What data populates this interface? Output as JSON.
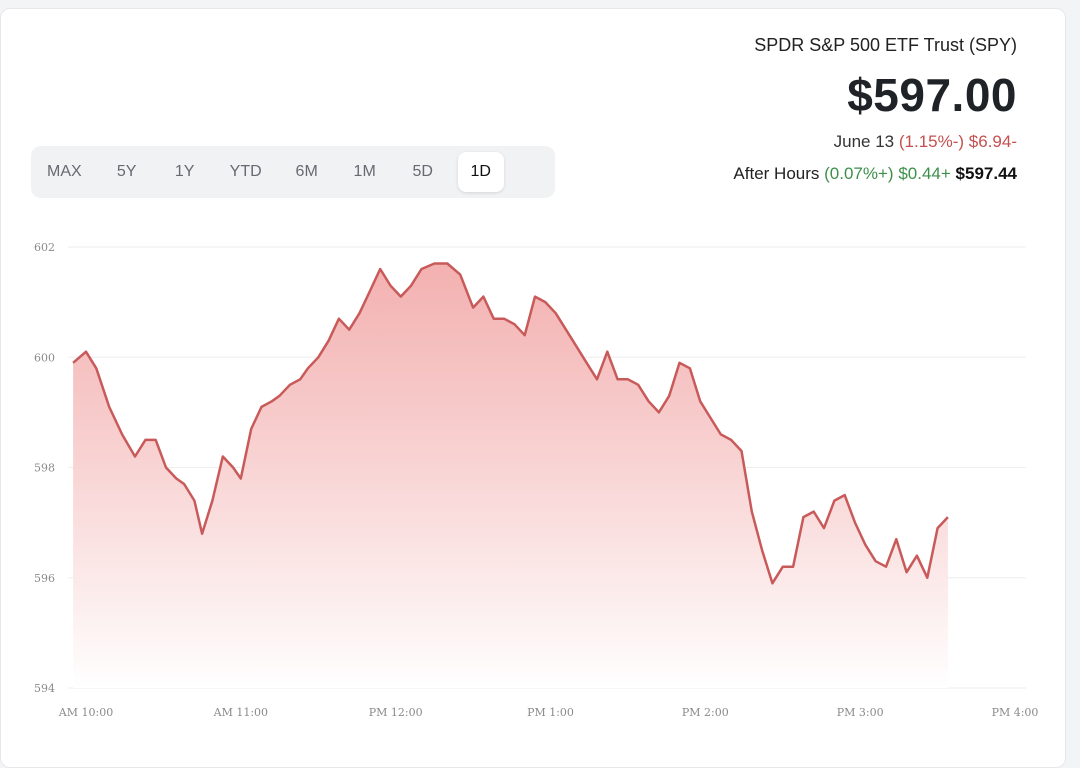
{
  "quote": {
    "name": "SPDR S&P 500 ETF Trust (SPY)",
    "price": "$597.00",
    "date": "June 13",
    "change_pct": "(1.15%-)",
    "change_abs": "$6.94-",
    "after_hours_label": "After Hours",
    "after_hours_pct": "(0.07%+)",
    "after_hours_abs": "$0.44+",
    "after_hours_price": "$597.44"
  },
  "range_tabs": [
    "MAX",
    "5Y",
    "1Y",
    "YTD",
    "6M",
    "1M",
    "5D",
    "1D"
  ],
  "active_range": "1D",
  "colors": {
    "line": "#c85a5a",
    "fill_top": "#f2a8a8",
    "fill_bottom": "#ffffff",
    "grid": "#eeeeee"
  },
  "chart_data": {
    "type": "area",
    "title": "",
    "xlabel": "",
    "ylabel": "",
    "ylim": [
      594,
      602
    ],
    "y_ticks": [
      594,
      596,
      598,
      600,
      602
    ],
    "x_ticks": [
      {
        "label": "AM 10:00",
        "t": 0
      },
      {
        "label": "AM 11:00",
        "t": 60
      },
      {
        "label": "PM 12:00",
        "t": 120
      },
      {
        "label": "PM 1:00",
        "t": 180
      },
      {
        "label": "PM 2:00",
        "t": 240
      },
      {
        "label": "PM 3:00",
        "t": 300
      },
      {
        "label": "PM 4:00",
        "t": 360
      }
    ],
    "grid": true,
    "series": [
      {
        "values": [
          [
            -5,
            599.9
          ],
          [
            0,
            600.1
          ],
          [
            4,
            599.8
          ],
          [
            9,
            599.1
          ],
          [
            14,
            598.6
          ],
          [
            19,
            598.2
          ],
          [
            23,
            598.5
          ],
          [
            27,
            598.5
          ],
          [
            31,
            598.0
          ],
          [
            35,
            597.8
          ],
          [
            38,
            597.7
          ],
          [
            42,
            597.4
          ],
          [
            45,
            596.8
          ],
          [
            49,
            597.4
          ],
          [
            53,
            598.2
          ],
          [
            57,
            598.0
          ],
          [
            60,
            597.8
          ],
          [
            64,
            598.7
          ],
          [
            68,
            599.1
          ],
          [
            72,
            599.2
          ],
          [
            75,
            599.3
          ],
          [
            79,
            599.5
          ],
          [
            83,
            599.6
          ],
          [
            86,
            599.8
          ],
          [
            90,
            600.0
          ],
          [
            94,
            600.3
          ],
          [
            98,
            600.7
          ],
          [
            102,
            600.5
          ],
          [
            106,
            600.8
          ],
          [
            110,
            601.2
          ],
          [
            114,
            601.6
          ],
          [
            118,
            601.3
          ],
          [
            122,
            601.1
          ],
          [
            126,
            601.3
          ],
          [
            130,
            601.6
          ],
          [
            135,
            601.7
          ],
          [
            140,
            601.7
          ],
          [
            145,
            601.5
          ],
          [
            150,
            600.9
          ],
          [
            154,
            601.1
          ],
          [
            158,
            600.7
          ],
          [
            162,
            600.7
          ],
          [
            166,
            600.6
          ],
          [
            170,
            600.4
          ],
          [
            174,
            601.1
          ],
          [
            178,
            601.0
          ],
          [
            182,
            600.8
          ],
          [
            186,
            600.5
          ],
          [
            190,
            600.2
          ],
          [
            194,
            599.9
          ],
          [
            198,
            599.6
          ],
          [
            202,
            600.1
          ],
          [
            206,
            599.6
          ],
          [
            210,
            599.6
          ],
          [
            214,
            599.5
          ],
          [
            218,
            599.2
          ],
          [
            222,
            599.0
          ],
          [
            226,
            599.3
          ],
          [
            230,
            599.9
          ],
          [
            234,
            599.8
          ],
          [
            238,
            599.2
          ],
          [
            242,
            598.9
          ],
          [
            246,
            598.6
          ],
          [
            250,
            598.5
          ],
          [
            254,
            598.3
          ],
          [
            258,
            597.2
          ],
          [
            262,
            596.5
          ],
          [
            266,
            595.9
          ],
          [
            270,
            596.2
          ],
          [
            274,
            596.2
          ],
          [
            278,
            597.1
          ],
          [
            282,
            597.2
          ],
          [
            286,
            596.9
          ],
          [
            290,
            597.4
          ],
          [
            294,
            597.5
          ],
          [
            298,
            597.0
          ],
          [
            302,
            596.6
          ],
          [
            306,
            596.3
          ],
          [
            310,
            596.2
          ],
          [
            314,
            596.7
          ],
          [
            318,
            596.1
          ],
          [
            322,
            596.4
          ],
          [
            326,
            596.0
          ],
          [
            330,
            596.9
          ],
          [
            334,
            597.1
          ]
        ]
      }
    ]
  }
}
